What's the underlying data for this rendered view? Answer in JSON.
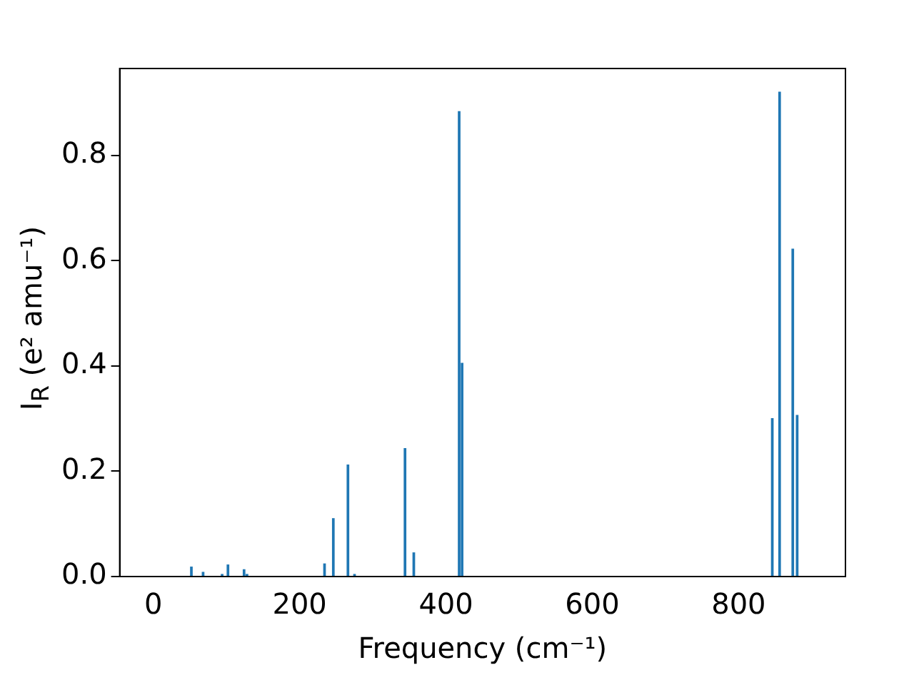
{
  "chart_data": {
    "type": "bar",
    "xlabel": "Frequency (cm⁻¹)",
    "ylabel": "I$_{R}$ (e² amu⁻¹)",
    "x": [
      52,
      68,
      94,
      102,
      124,
      128,
      234,
      246,
      266,
      275,
      344,
      356,
      418,
      422,
      846,
      856,
      874,
      880
    ],
    "values": [
      0.018,
      0.008,
      0.004,
      0.022,
      0.013,
      0.004,
      0.024,
      0.11,
      0.212,
      0.004,
      0.243,
      0.045,
      0.883,
      0.405,
      0.3,
      0.92,
      0.622,
      0.306
    ],
    "color": "#1f77b4",
    "xlim": [
      -46,
      946
    ],
    "ylim": [
      0,
      0.965
    ],
    "xticks": [
      0,
      200,
      400,
      600,
      800
    ],
    "yticks": [
      {
        "value": 0,
        "label": "0.0"
      },
      {
        "value": 0.2,
        "label": "0.2"
      },
      {
        "value": 0.4,
        "label": "0.4"
      },
      {
        "value": 0.6,
        "label": "0.6"
      },
      {
        "value": 0.8,
        "label": "0.8"
      }
    ],
    "grid": false,
    "legend": false
  }
}
